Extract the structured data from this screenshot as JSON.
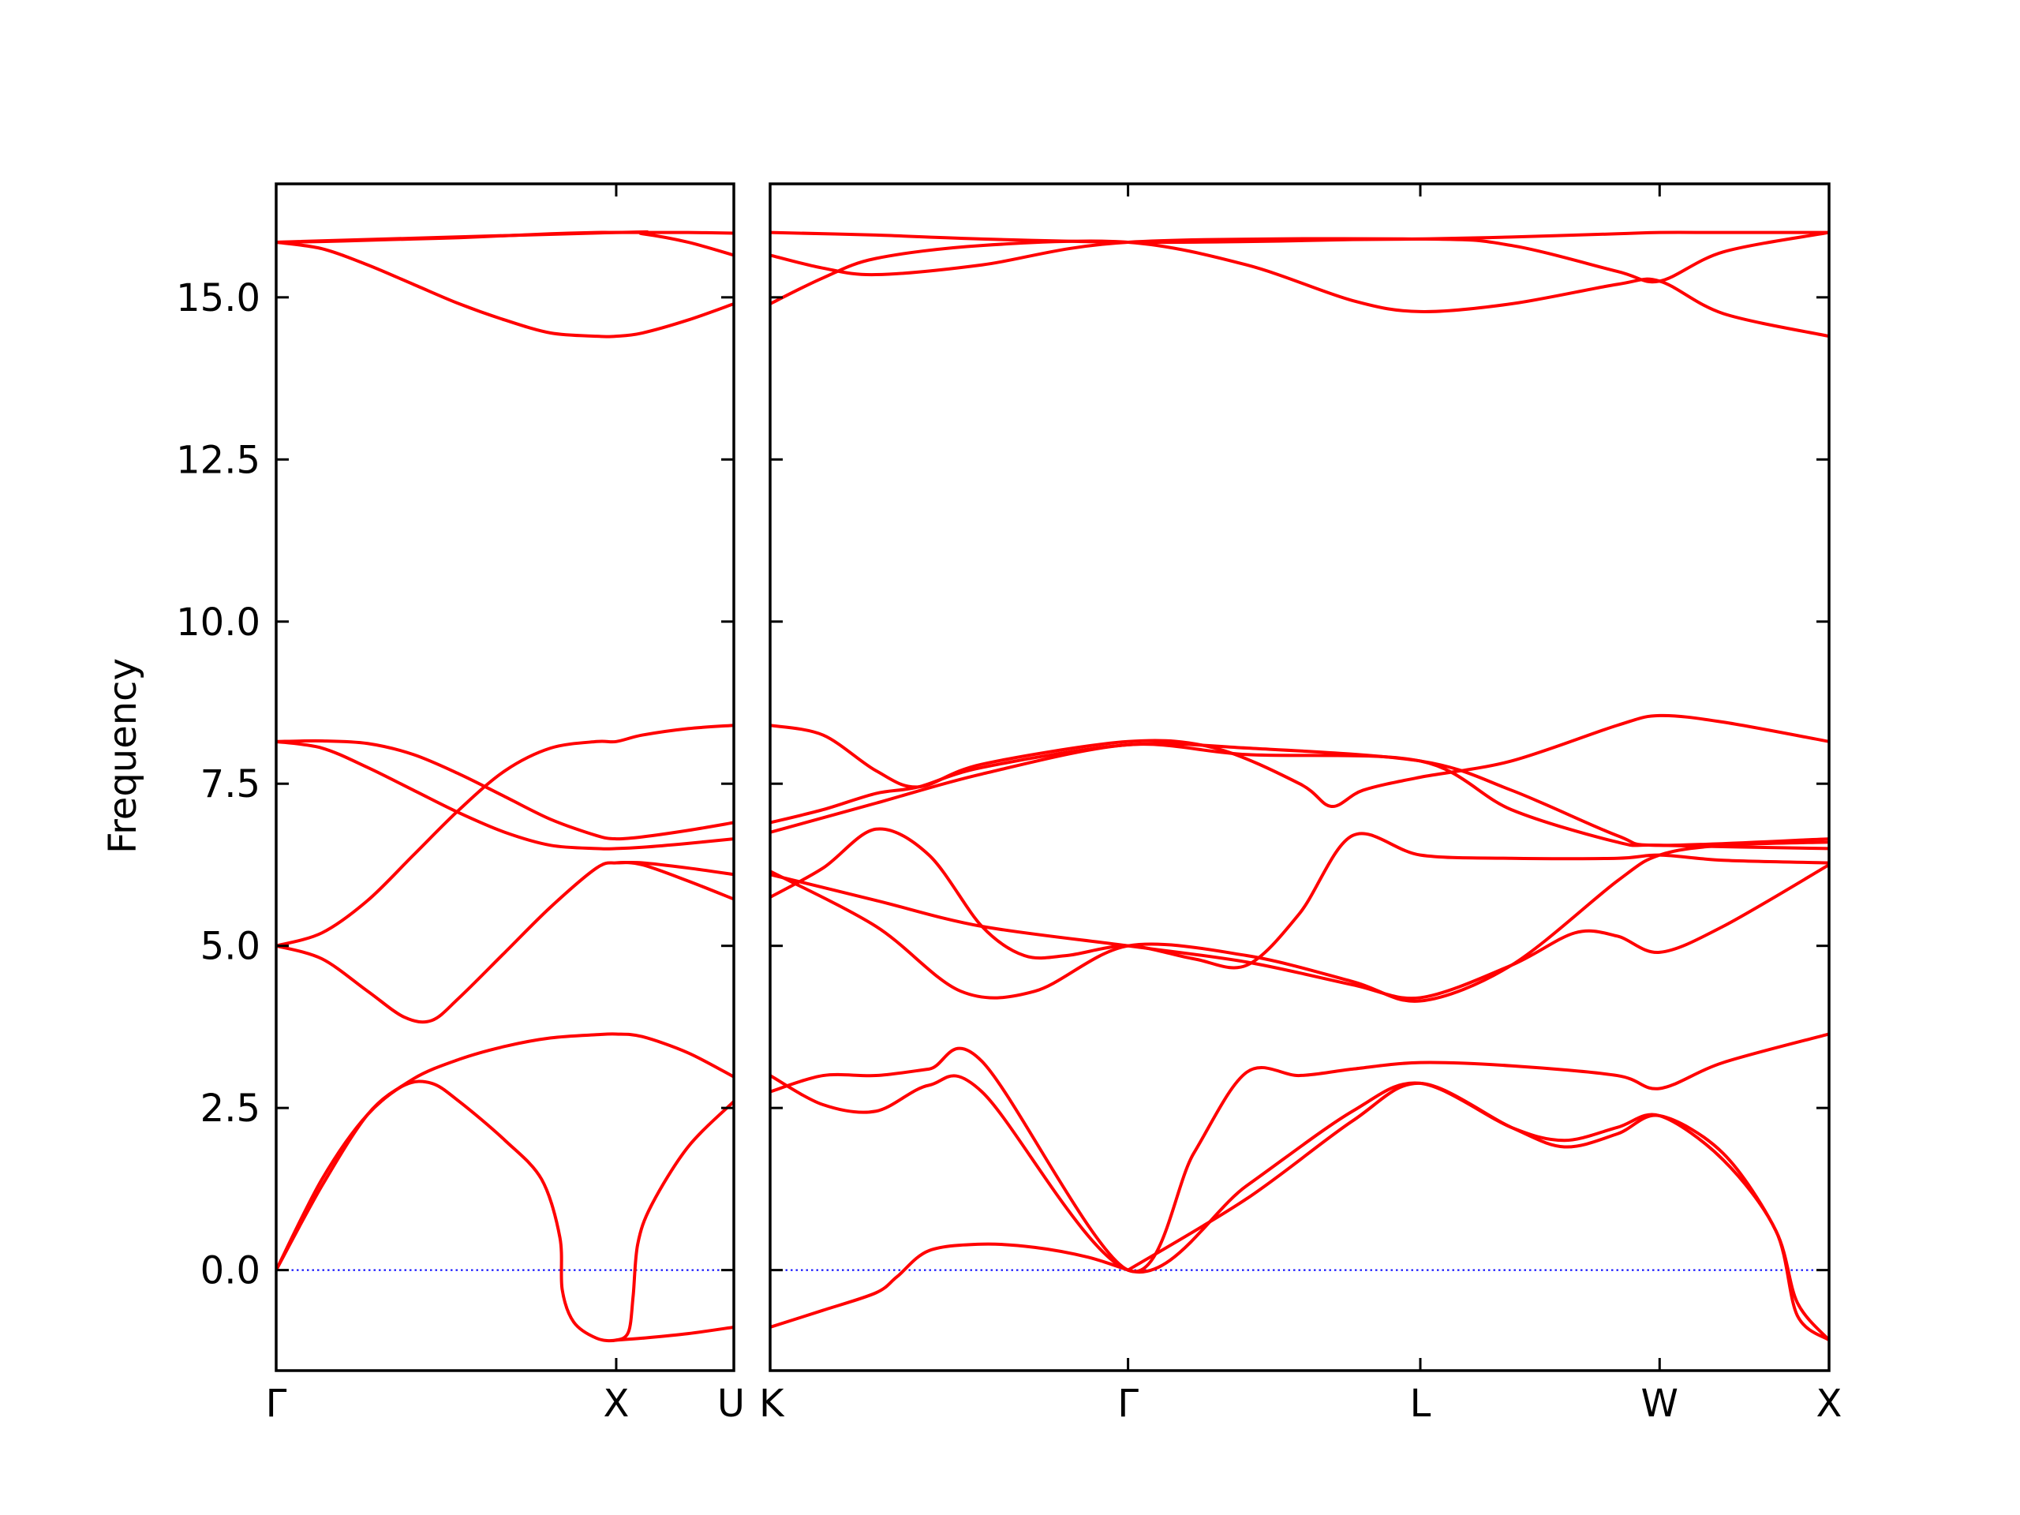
{
  "chart_data": {
    "type": "line",
    "ylabel": "Frequency",
    "xlabel": "",
    "ylim": [
      -1.55,
      16.75
    ],
    "yticks": [
      "0.0",
      "2.5",
      "5.0",
      "7.5",
      "10.0",
      "12.5",
      "15.0"
    ],
    "grid": false,
    "colors": {
      "bands": "#ff0000",
      "zero_line": "#0000ff"
    },
    "panels": [
      {
        "name": "gamma-x-u",
        "xlim": [
          0,
          1
        ],
        "high_symmetry_points": [
          {
            "x": 0.0,
            "label": "Γ"
          },
          {
            "x": 0.743,
            "label": "X"
          },
          {
            "x": 1.0,
            "label": "U"
          }
        ],
        "series": [
          {
            "x": [
              0.0,
              0.1,
              0.2,
              0.3,
              0.4,
              0.5,
              0.6,
              0.7,
              0.743,
              0.8,
              0.9,
              1.0
            ],
            "values": [
              15.85,
              15.86,
              15.88,
              15.9,
              15.92,
              15.95,
              15.98,
              16.0,
              16.0,
              16.0,
              16.0,
              15.99
            ]
          },
          {
            "x": [
              0.0,
              0.1,
              0.2,
              0.3,
              0.4,
              0.5,
              0.6,
              0.7,
              0.743,
              0.8,
              0.9,
              1.0
            ],
            "values": [
              15.85,
              15.75,
              15.5,
              15.2,
              14.9,
              14.65,
              14.45,
              14.4,
              14.4,
              14.45,
              14.65,
              14.9
            ]
          },
          {
            "x": [
              0.0,
              0.743,
              0.8,
              0.9,
              1.0
            ],
            "values": [
              15.85,
              16.0,
              15.98,
              15.85,
              15.65
            ]
          },
          {
            "x": [
              0.0,
              0.1,
              0.2,
              0.3,
              0.4,
              0.5,
              0.6,
              0.7,
              0.743,
              0.8,
              0.9,
              1.0
            ],
            "values": [
              8.15,
              8.16,
              8.12,
              7.95,
              7.65,
              7.3,
              6.95,
              6.7,
              6.65,
              6.68,
              6.78,
              6.9
            ]
          },
          {
            "x": [
              0.0,
              0.1,
              0.2,
              0.3,
              0.4,
              0.5,
              0.6,
              0.7,
              0.743,
              0.8,
              0.9,
              1.0
            ],
            "values": [
              8.15,
              8.05,
              7.75,
              7.4,
              7.05,
              6.75,
              6.55,
              6.5,
              6.5,
              6.52,
              6.58,
              6.65
            ]
          },
          {
            "x": [
              0.0,
              0.1,
              0.2,
              0.3,
              0.4,
              0.5,
              0.6,
              0.7,
              0.743,
              0.8,
              0.9,
              1.0
            ],
            "values": [
              5.0,
              5.2,
              5.7,
              6.4,
              7.1,
              7.7,
              8.05,
              8.15,
              8.15,
              8.25,
              8.35,
              8.4
            ]
          },
          {
            "x": [
              0.0,
              0.1,
              0.2,
              0.28,
              0.34,
              0.4,
              0.5,
              0.6,
              0.7,
              0.743,
              0.8,
              0.9,
              1.0
            ],
            "values": [
              5.0,
              4.8,
              4.3,
              3.9,
              3.85,
              4.2,
              4.9,
              5.6,
              6.2,
              6.28,
              6.25,
              6.0,
              5.72
            ]
          },
          {
            "x": [
              0.743,
              0.8,
              0.9,
              1.0
            ],
            "values": [
              6.28,
              6.28,
              6.2,
              6.1
            ]
          },
          {
            "x": [
              0.0,
              0.1,
              0.2,
              0.3,
              0.4,
              0.5,
              0.6,
              0.7,
              0.743,
              0.8,
              0.9,
              1.0
            ],
            "values": [
              0.0,
              1.4,
              2.4,
              2.95,
              3.25,
              3.45,
              3.58,
              3.63,
              3.64,
              3.6,
              3.35,
              2.98
            ]
          },
          {
            "x": [
              0.0,
              0.1,
              0.2,
              0.28,
              0.34,
              0.4,
              0.5,
              0.58,
              0.62,
              0.625,
              0.65,
              0.7,
              0.743,
              0.77,
              0.78,
              0.79,
              0.82,
              0.9,
              1.0
            ],
            "values": [
              0.0,
              1.3,
              2.4,
              2.85,
              2.88,
              2.6,
              2.0,
              1.4,
              0.5,
              -0.3,
              -0.8,
              -1.05,
              -1.08,
              -0.95,
              -0.4,
              0.4,
              1.0,
              1.9,
              2.6
            ]
          },
          {
            "x": [
              0.743,
              0.8,
              0.9,
              1.0
            ],
            "values": [
              -1.08,
              -1.05,
              -0.98,
              -0.88
            ]
          }
        ]
      },
      {
        "name": "k-gamma-l-w-x",
        "xlim": [
          0,
          1
        ],
        "high_symmetry_points": [
          {
            "x": 0.0,
            "label": "K"
          },
          {
            "x": 0.338,
            "label": "Γ"
          },
          {
            "x": 0.614,
            "label": "L"
          },
          {
            "x": 0.84,
            "label": "W"
          },
          {
            "x": 1.0,
            "label": "X"
          }
        ],
        "series": [
          {
            "x": [
              0.0,
              0.1,
              0.2,
              0.338,
              0.45,
              0.55,
              0.614,
              0.7,
              0.8,
              0.84,
              0.9,
              1.0
            ],
            "values": [
              16.0,
              15.96,
              15.9,
              15.85,
              15.86,
              15.89,
              15.9,
              15.93,
              15.98,
              16.0,
              16.0,
              16.0
            ]
          },
          {
            "x": [
              0.0,
              0.05,
              0.1,
              0.2,
              0.338,
              0.614,
              0.7,
              0.8,
              0.84,
              0.9,
              1.0
            ],
            "values": [
              15.65,
              15.45,
              15.35,
              15.5,
              15.85,
              15.9,
              15.8,
              15.4,
              15.25,
              15.7,
              16.0
            ]
          },
          {
            "x": [
              0.0,
              0.05,
              0.1,
              0.2,
              0.338,
              0.45,
              0.55,
              0.614,
              0.7,
              0.8,
              0.84,
              0.9,
              1.0
            ],
            "values": [
              14.9,
              15.3,
              15.6,
              15.8,
              15.85,
              15.5,
              14.95,
              14.78,
              14.9,
              15.2,
              15.25,
              14.75,
              14.4
            ]
          },
          {
            "x": [
              0.0,
              0.05,
              0.1,
              0.14,
              0.2,
              0.338,
              0.42,
              0.5,
              0.53,
              0.56,
              0.614,
              0.7,
              0.8,
              0.84,
              0.9,
              1.0
            ],
            "values": [
              8.4,
              8.25,
              7.7,
              7.45,
              7.8,
              8.15,
              8.05,
              7.5,
              7.15,
              7.4,
              7.6,
              7.85,
              8.4,
              8.55,
              8.45,
              8.15
            ]
          },
          {
            "x": [
              0.0,
              0.05,
              0.1,
              0.14,
              0.2,
              0.338,
              0.45,
              0.614,
              0.7,
              0.8,
              0.84,
              1.0
            ],
            "values": [
              6.9,
              7.1,
              7.35,
              7.45,
              7.75,
              8.1,
              8.05,
              7.85,
              7.4,
              6.7,
              6.55,
              6.65
            ]
          },
          {
            "x": [
              0.0,
              0.1,
              0.2,
              0.338,
              0.45,
              0.614,
              0.7,
              0.8,
              0.84,
              1.0
            ],
            "values": [
              6.75,
              7.2,
              7.65,
              8.1,
              7.95,
              7.85,
              7.1,
              6.6,
              6.55,
              6.5
            ]
          },
          {
            "x": [
              0.0,
              0.05,
              0.1,
              0.15,
              0.2,
              0.24,
              0.28,
              0.338,
              0.4,
              0.45,
              0.5,
              0.55,
              0.614,
              0.7,
              0.8,
              0.84,
              0.9,
              1.0
            ],
            "values": [
              5.75,
              6.2,
              6.8,
              6.4,
              5.3,
              4.85,
              4.85,
              5.0,
              4.8,
              4.7,
              5.5,
              6.7,
              6.4,
              6.35,
              6.35,
              6.4,
              6.32,
              6.28
            ]
          },
          {
            "x": [
              0.0,
              0.1,
              0.2,
              0.338,
              0.45,
              0.55,
              0.614,
              0.7,
              0.76,
              0.8,
              0.84,
              0.9,
              1.0
            ],
            "values": [
              6.1,
              5.7,
              5.3,
              5.0,
              4.75,
              4.4,
              4.2,
              4.7,
              5.2,
              5.15,
              4.9,
              5.3,
              6.25
            ]
          },
          {
            "x": [
              0.0,
              0.1,
              0.18,
              0.25,
              0.338,
              0.45,
              0.55,
              0.614,
              0.7,
              0.8,
              0.84,
              0.9,
              1.0
            ],
            "values": [
              6.15,
              5.3,
              4.3,
              4.3,
              5.0,
              4.85,
              4.45,
              4.15,
              4.7,
              6.0,
              6.4,
              6.55,
              6.6
            ]
          },
          {
            "x": [
              0.0,
              0.05,
              0.1,
              0.15,
              0.2,
              0.338,
              0.4,
              0.45,
              0.5,
              0.55,
              0.614,
              0.7,
              0.8,
              0.84,
              0.9,
              1.0
            ],
            "values": [
              2.75,
              3.0,
              3.0,
              3.1,
              3.22,
              0.0,
              1.8,
              3.05,
              3.0,
              3.1,
              3.2,
              3.15,
              3.0,
              2.8,
              3.2,
              3.64
            ]
          },
          {
            "x": [
              0.0,
              0.05,
              0.1,
              0.15,
              0.2,
              0.338,
              0.45,
              0.55,
              0.614,
              0.7,
              0.75,
              0.8,
              0.84,
              0.9,
              0.95,
              0.97,
              1.0
            ],
            "values": [
              3.0,
              2.55,
              2.45,
              2.85,
              2.75,
              0.0,
              1.3,
              2.45,
              2.88,
              2.2,
              2.0,
              2.2,
              2.38,
              1.7,
              0.6,
              -0.7,
              -1.08
            ]
          },
          {
            "x": [
              0.338,
              0.45,
              0.55,
              0.614,
              0.7,
              0.75,
              0.8,
              0.84,
              0.9,
              0.95,
              0.97,
              1.0
            ],
            "values": [
              0.0,
              1.1,
              2.3,
              2.88,
              2.2,
              1.9,
              2.1,
              2.38,
              1.8,
              0.6,
              -0.5,
              -1.08
            ]
          },
          {
            "x": [
              0.0,
              0.05,
              0.1,
              0.12,
              0.15,
              0.2,
              0.25,
              0.3,
              0.338
            ],
            "values": [
              -0.88,
              -0.62,
              -0.35,
              -0.1,
              0.3,
              0.4,
              0.35,
              0.2,
              0.0
            ]
          }
        ]
      }
    ]
  }
}
